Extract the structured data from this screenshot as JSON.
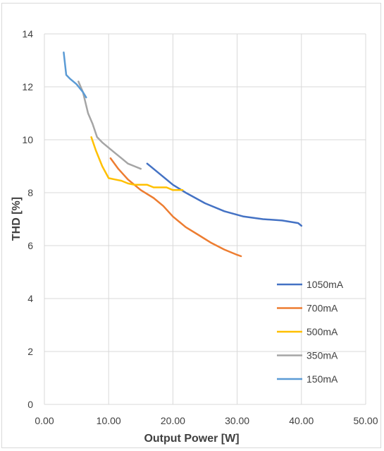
{
  "chart_data": {
    "type": "line",
    "title": "",
    "xlabel": "Output Power [W]",
    "ylabel": "THD [%]",
    "xlim": [
      0,
      50
    ],
    "ylim": [
      0,
      14
    ],
    "x_ticks": [
      "0.00",
      "10.00",
      "20.00",
      "30.00",
      "40.00",
      "50.00"
    ],
    "y_ticks": [
      "0",
      "2",
      "4",
      "6",
      "8",
      "10",
      "12",
      "14"
    ],
    "grid": true,
    "legend_position": "right",
    "series": [
      {
        "name": "1050mA",
        "color": "#4472c4",
        "points": [
          [
            16,
            9.1
          ],
          [
            18,
            8.7
          ],
          [
            20,
            8.3
          ],
          [
            22,
            8.0
          ],
          [
            25,
            7.6
          ],
          [
            28,
            7.3
          ],
          [
            31,
            7.1
          ],
          [
            34,
            7.0
          ],
          [
            37,
            6.95
          ],
          [
            39.5,
            6.85
          ],
          [
            40,
            6.75
          ]
        ]
      },
      {
        "name": "700mA",
        "color": "#ed7d31",
        "points": [
          [
            10.3,
            9.3
          ],
          [
            11.5,
            8.9
          ],
          [
            13,
            8.5
          ],
          [
            15,
            8.1
          ],
          [
            17,
            7.8
          ],
          [
            18.5,
            7.5
          ],
          [
            20,
            7.1
          ],
          [
            22,
            6.7
          ],
          [
            24,
            6.4
          ],
          [
            26,
            6.1
          ],
          [
            28,
            5.85
          ],
          [
            30,
            5.65
          ],
          [
            30.6,
            5.6
          ]
        ]
      },
      {
        "name": "500mA",
        "color": "#ffc000",
        "points": [
          [
            7.3,
            10.1
          ],
          [
            8,
            9.6
          ],
          [
            9,
            9.0
          ],
          [
            10,
            8.55
          ],
          [
            11,
            8.5
          ],
          [
            12,
            8.45
          ],
          [
            13,
            8.35
          ],
          [
            14,
            8.3
          ],
          [
            15,
            8.3
          ],
          [
            16,
            8.3
          ],
          [
            17,
            8.2
          ],
          [
            18,
            8.2
          ],
          [
            19,
            8.2
          ],
          [
            20,
            8.1
          ],
          [
            21,
            8.1
          ],
          [
            21.5,
            8.1
          ]
        ]
      },
      {
        "name": "350mA",
        "color": "#a5a5a5",
        "points": [
          [
            5.3,
            12.2
          ],
          [
            6,
            11.8
          ],
          [
            6.8,
            11.0
          ],
          [
            7.5,
            10.6
          ],
          [
            8.2,
            10.1
          ],
          [
            9,
            9.9
          ],
          [
            10,
            9.7
          ],
          [
            11,
            9.5
          ],
          [
            12,
            9.3
          ],
          [
            13,
            9.1
          ],
          [
            14,
            9.0
          ],
          [
            15,
            8.9
          ]
        ]
      },
      {
        "name": "150mA",
        "color": "#5b9bd5",
        "points": [
          [
            3.0,
            13.3
          ],
          [
            3.4,
            12.45
          ],
          [
            4.0,
            12.3
          ],
          [
            5,
            12.1
          ],
          [
            6,
            11.8
          ],
          [
            6.5,
            11.6
          ]
        ]
      }
    ]
  }
}
